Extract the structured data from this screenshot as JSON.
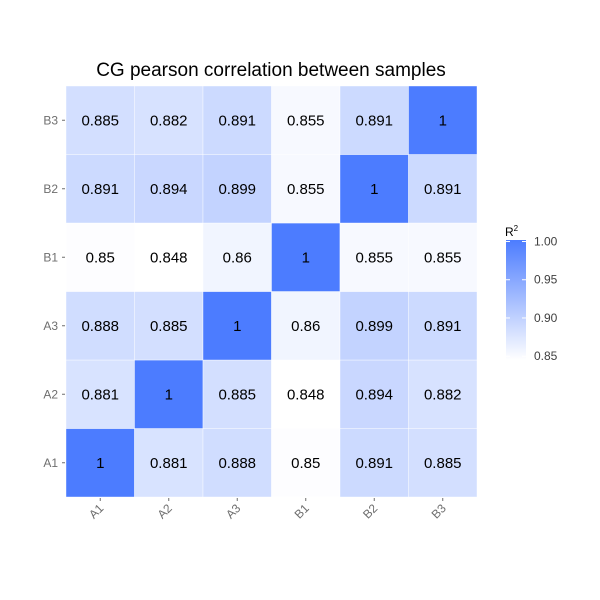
{
  "chart_data": {
    "type": "heatmap",
    "title": "CG pearson correlation between samples",
    "x_categories": [
      "A1",
      "A2",
      "A3",
      "B1",
      "B2",
      "B3"
    ],
    "y_categories": [
      "A1",
      "A2",
      "A3",
      "B1",
      "B2",
      "B3"
    ],
    "values": [
      [
        1,
        0.881,
        0.888,
        0.85,
        0.891,
        0.885
      ],
      [
        0.881,
        1,
        0.885,
        0.848,
        0.894,
        0.882
      ],
      [
        0.888,
        0.885,
        1,
        0.86,
        0.899,
        0.891
      ],
      [
        0.85,
        0.848,
        0.86,
        1,
        0.855,
        0.855
      ],
      [
        0.891,
        0.894,
        0.899,
        0.855,
        1,
        0.891
      ],
      [
        0.885,
        0.882,
        0.891,
        0.855,
        0.891,
        1
      ]
    ],
    "color_scale": {
      "min": 0.848,
      "max": 1.0,
      "low_color": "#ffffff",
      "high_color": "#4c7cff"
    },
    "legend": {
      "title_base": "R",
      "title_superscript": "2",
      "ticks": [
        "1.00",
        "0.95",
        "0.90",
        "0.85"
      ],
      "tick_values": [
        1.0,
        0.95,
        0.9,
        0.85
      ],
      "position": "right"
    },
    "xlabel": "",
    "ylabel": "",
    "grid": false
  }
}
